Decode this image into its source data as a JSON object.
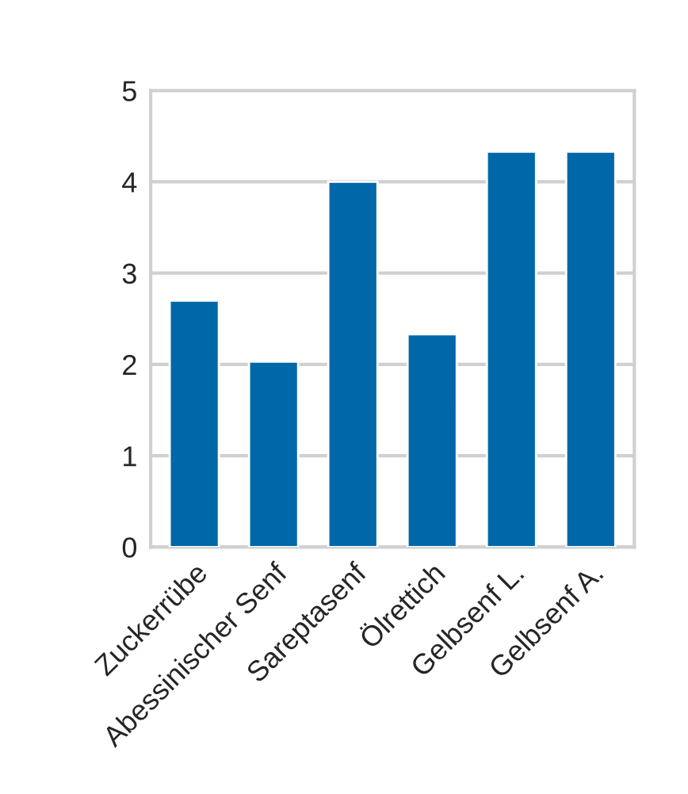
{
  "chart_data": {
    "type": "bar",
    "categories": [
      "Zuckerrübe",
      "Abessinischer Senf",
      "Sareptasenf",
      "Ölrettich",
      "Gelbsenf L.",
      "Gelbsenf A."
    ],
    "values": [
      2.7,
      2.03,
      4.0,
      2.33,
      4.33,
      4.33
    ],
    "color": "#0068a8",
    "ylim": [
      0,
      5
    ],
    "yticks": [
      0,
      1,
      2,
      3,
      4,
      5
    ],
    "grid": "y"
  }
}
